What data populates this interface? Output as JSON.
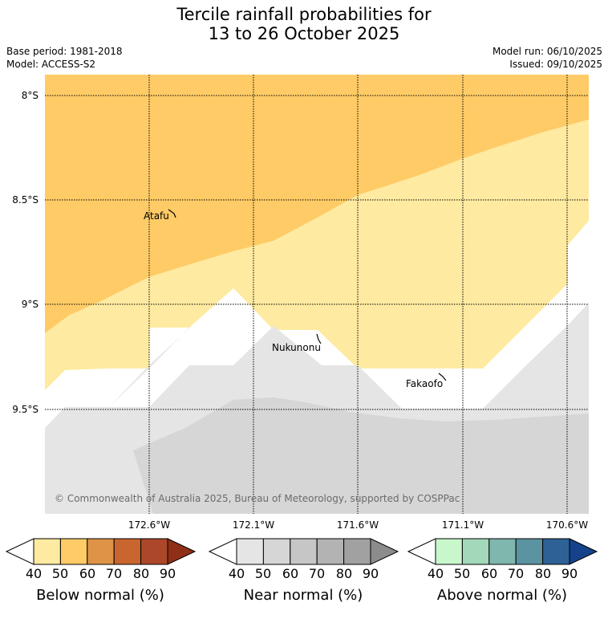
{
  "title": {
    "line1": "Tercile rainfall probabilities for",
    "line2": "13 to 26 October 2025"
  },
  "meta": {
    "base_period": "Base period: 1981-2018",
    "model": "Model: ACCESS-S2",
    "model_run": "Model run: 06/10/2025",
    "issued": "Issued: 09/10/2025"
  },
  "map": {
    "lat_labels": [
      "8°S",
      "8.5°S",
      "9°S",
      "9.5°S"
    ],
    "lon_labels": [
      "172.6°W",
      "172.1°W",
      "171.6°W",
      "171.1°W",
      "170.6°W"
    ],
    "places": [
      "Atafu",
      "Nukunonu",
      "Fakaofo"
    ],
    "copyright": "© Commonwealth of Australia 2025, Bureau of Meteorology, supported by COSPPac"
  },
  "colorbars": [
    {
      "title": "Below normal (%)",
      "ticks": [
        "40",
        "50",
        "60",
        "70",
        "80",
        "90"
      ],
      "colors": [
        "#ffffff",
        "#feeaa0",
        "#fecb66",
        "#df9346",
        "#c9662f",
        "#ad4729",
        "#8f2f17"
      ]
    },
    {
      "title": "Near normal (%)",
      "ticks": [
        "40",
        "50",
        "60",
        "70",
        "80",
        "90"
      ],
      "colors": [
        "#ffffff",
        "#e5e5e5",
        "#d6d6d6",
        "#c6c6c6",
        "#b3b3b3",
        "#a1a1a1",
        "#8c8c8c"
      ]
    },
    {
      "title": "Above normal (%)",
      "ticks": [
        "40",
        "50",
        "60",
        "70",
        "80",
        "90"
      ],
      "colors": [
        "#ffffff",
        "#c8f7cc",
        "#a4d8bb",
        "#7fb6ae",
        "#5b93a0",
        "#2e6196",
        "#15428a"
      ]
    }
  ]
}
